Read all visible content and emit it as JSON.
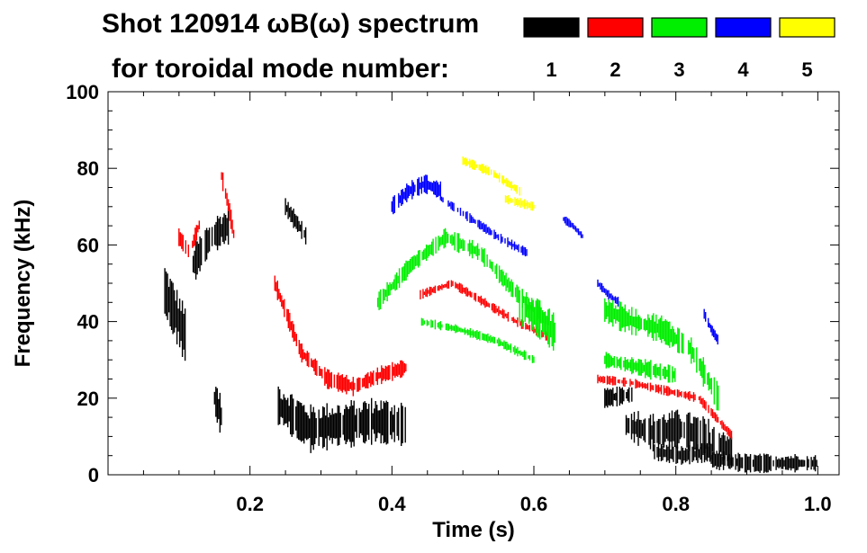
{
  "chart_data": {
    "type": "heatmap",
    "title_line1": "Shot 120914 ωB(ω) spectrum",
    "title_line2": "for toroidal mode number:",
    "xlabel": "Time (s)",
    "ylabel": "Frequency (kHz)",
    "xlim": [
      0.0,
      1.03
    ],
    "ylim": [
      0,
      100
    ],
    "x_ticks": [
      0.2,
      0.4,
      0.6,
      0.8,
      1.0
    ],
    "x_tick_labels": [
      "0.2",
      "0.4",
      "0.6",
      "0.8",
      "1.0"
    ],
    "y_ticks": [
      0,
      20,
      40,
      60,
      80,
      100
    ],
    "y_tick_labels": [
      "0",
      "20",
      "40",
      "60",
      "80",
      "100"
    ],
    "legend": [
      {
        "label": "1",
        "color": "#000000"
      },
      {
        "label": "2",
        "color": "#ff0000"
      },
      {
        "label": "3",
        "color": "#00ee00"
      },
      {
        "label": "4",
        "color": "#0000ff"
      },
      {
        "label": "5",
        "color": "#ffff00"
      }
    ],
    "series": [
      {
        "name": "n=1",
        "color": "#000000",
        "segments": [
          {
            "t0": 0.08,
            "t1": 0.11,
            "f": [
              48,
              42,
              36
            ],
            "w": 6
          },
          {
            "t0": 0.12,
            "t1": 0.17,
            "f": [
              55,
              62,
              65
            ],
            "w": 4
          },
          {
            "t0": 0.15,
            "t1": 0.16,
            "f": [
              20,
              15
            ],
            "w": 4
          },
          {
            "t0": 0.24,
            "t1": 0.42,
            "f": [
              18,
              12,
              13,
              14,
              13
            ],
            "w": 5
          },
          {
            "t0": 0.25,
            "t1": 0.28,
            "f": [
              70,
              62
            ],
            "w": 2
          },
          {
            "t0": 0.7,
            "t1": 0.74,
            "f": [
              20,
              21
            ],
            "w": 2
          },
          {
            "t0": 0.73,
            "t1": 0.88,
            "f": [
              13,
              11,
              12,
              10,
              6
            ],
            "w": 4
          },
          {
            "t0": 0.77,
            "t1": 0.85,
            "f": [
              6,
              5,
              6
            ],
            "w": 2
          },
          {
            "t0": 0.85,
            "t1": 1.0,
            "f": [
              4,
              3,
              3,
              3
            ],
            "w": 2
          }
        ]
      },
      {
        "name": "n=2",
        "color": "#ff0000",
        "segments": [
          {
            "t0": 0.1,
            "t1": 0.13,
            "f": [
              62,
              58,
              66
            ],
            "w": 2
          },
          {
            "t0": 0.16,
            "t1": 0.18,
            "f": [
              78,
              70,
              60
            ],
            "w": 2
          },
          {
            "t0": 0.235,
            "t1": 0.42,
            "f": [
              50,
              32,
              25,
              23,
              26,
              28
            ],
            "w": 2
          },
          {
            "t0": 0.44,
            "t1": 0.62,
            "f": [
              47,
              50,
              45,
              40,
              36
            ],
            "w": 1
          },
          {
            "t0": 0.69,
            "t1": 0.88,
            "f": [
              25,
              24,
              22,
              20,
              10
            ],
            "w": 1
          }
        ]
      },
      {
        "name": "n=3",
        "color": "#00ee00",
        "segments": [
          {
            "t0": 0.38,
            "t1": 0.62,
            "f": [
              45,
              55,
              62,
              58,
              48,
              40
            ],
            "w": 2
          },
          {
            "t0": 0.58,
            "t1": 0.63,
            "f": [
              44,
              41,
              37
            ],
            "w": 4
          },
          {
            "t0": 0.44,
            "t1": 0.6,
            "f": [
              40,
              38,
              35,
              30
            ],
            "w": 1
          },
          {
            "t0": 0.7,
            "t1": 0.86,
            "f": [
              43,
              40,
              38,
              33,
              20
            ],
            "w": 3
          },
          {
            "t0": 0.7,
            "t1": 0.8,
            "f": [
              30,
              28,
              26
            ],
            "w": 2
          }
        ]
      },
      {
        "name": "n=4",
        "color": "#0000ff",
        "segments": [
          {
            "t0": 0.4,
            "t1": 0.47,
            "f": [
              70,
              74,
              76,
              74
            ],
            "w": 2
          },
          {
            "t0": 0.47,
            "t1": 0.59,
            "f": [
              72,
              67,
              62,
              58
            ],
            "w": 1
          },
          {
            "t0": 0.64,
            "t1": 0.67,
            "f": [
              67,
              65,
              62
            ],
            "w": 1
          },
          {
            "t0": 0.69,
            "t1": 0.72,
            "f": [
              50,
              47,
              45
            ],
            "w": 1
          },
          {
            "t0": 0.84,
            "t1": 0.86,
            "f": [
              42,
              38,
              35
            ],
            "w": 1
          }
        ]
      },
      {
        "name": "n=5",
        "color": "#ffff00",
        "segments": [
          {
            "t0": 0.5,
            "t1": 0.58,
            "f": [
              82,
              79,
              74
            ],
            "w": 1
          },
          {
            "t0": 0.56,
            "t1": 0.6,
            "f": [
              72,
              70
            ],
            "w": 1
          }
        ]
      }
    ]
  }
}
